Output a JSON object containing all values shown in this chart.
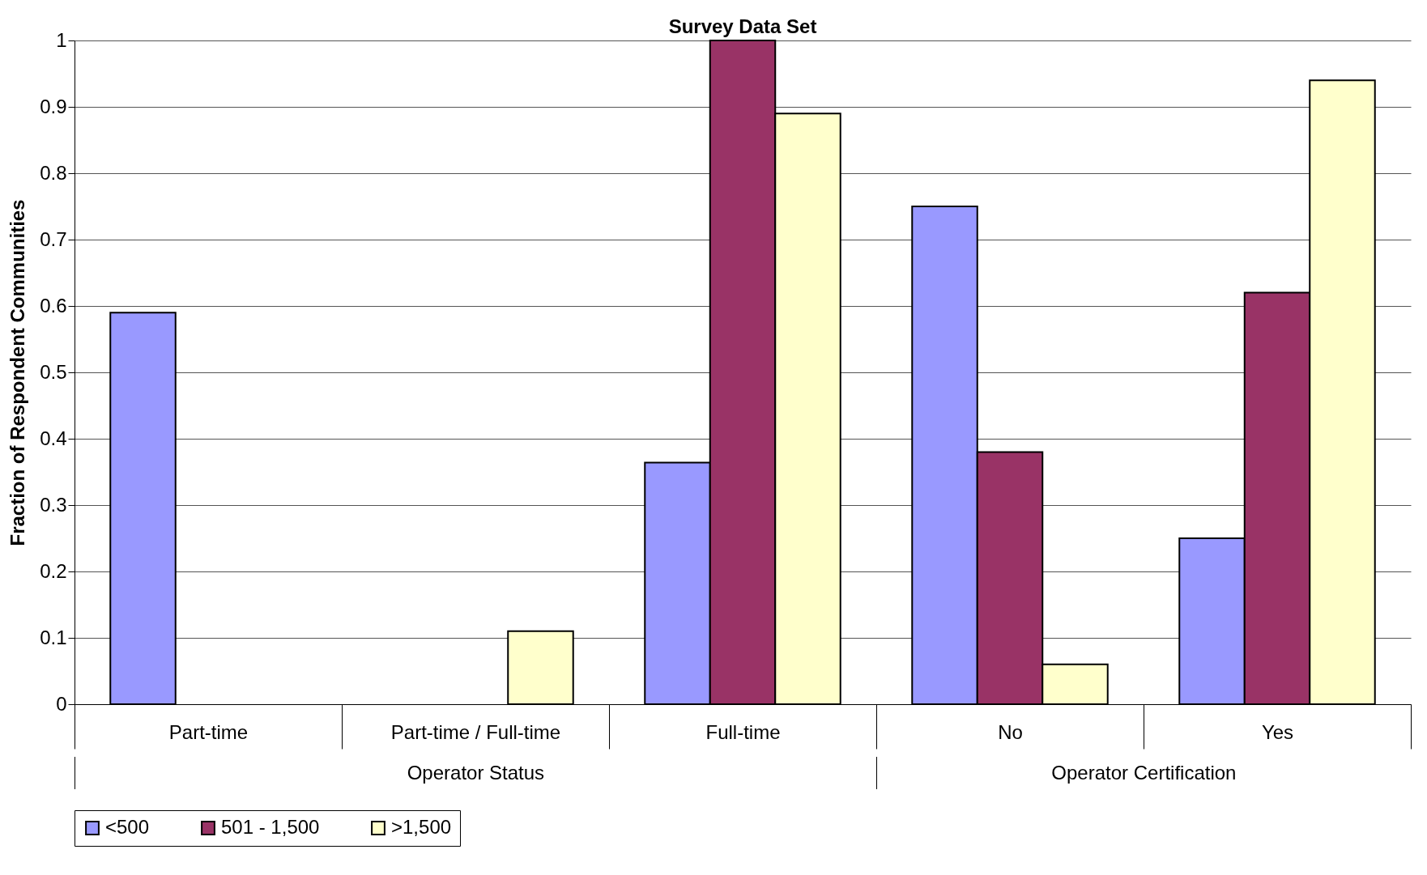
{
  "chart_data": {
    "type": "bar",
    "title": "Survey Data Set",
    "ylabel": "Fraction of Respondent Communities",
    "categories": [
      "Part-time",
      "Part-time / Full-time",
      "Full-time",
      "No",
      "Yes"
    ],
    "series": [
      {
        "name": "<500",
        "color": "#9999ff",
        "values": [
          0.59,
          null,
          0.364,
          0.75,
          0.25
        ]
      },
      {
        "name": "501 - 1,500",
        "color": "#993366",
        "values": [
          null,
          null,
          1,
          0.38,
          0.62
        ]
      },
      {
        "name": ">1,500",
        "color": "#ffffcc",
        "values": [
          null,
          0.11,
          0.89,
          0.06,
          0.94
        ]
      }
    ],
    "ylim": [
      0,
      1
    ],
    "yticks": [
      0,
      0.1,
      0.2,
      0.3,
      0.4,
      0.5,
      0.6,
      0.7,
      0.8,
      0.9,
      1
    ],
    "grid": "y",
    "legend": "bottom",
    "annotations": [
      "Operator Status",
      "Operator Certification"
    ]
  }
}
